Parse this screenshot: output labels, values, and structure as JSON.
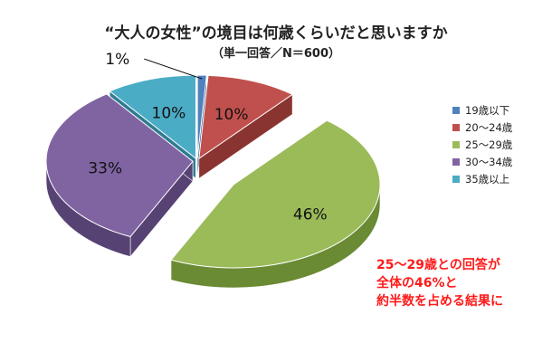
{
  "chart_data": {
    "type": "pie",
    "title": "“大人の女性”の境目は何歳くらいだと思いますか",
    "subtitle": "（単一回答／N＝600）",
    "legend_position": "right",
    "exploded_slice": "25～29歳",
    "slices": [
      {
        "label": "19歳以下",
        "value": 1,
        "value_label": "1%",
        "color": "#4f81bd",
        "dark": "#36598a"
      },
      {
        "label": "20～24歳",
        "value": 10,
        "value_label": "10%",
        "color": "#c0504d",
        "dark": "#8a3431"
      },
      {
        "label": "25～29歳",
        "value": 46,
        "value_label": "46%",
        "color": "#9bbb59",
        "dark": "#6a8a34"
      },
      {
        "label": "30～34歳",
        "value": 33,
        "value_label": "33%",
        "color": "#8064a2",
        "dark": "#574274"
      },
      {
        "label": "35歳以上",
        "value": 10,
        "value_label": "10%",
        "color": "#4bacc6",
        "dark": "#2f7c91"
      }
    ],
    "annotation_lines": [
      "25～29歳との回答が",
      "全体の46%と",
      "約半数を占める結果に"
    ],
    "annotation_color": "#ff1a1a"
  }
}
